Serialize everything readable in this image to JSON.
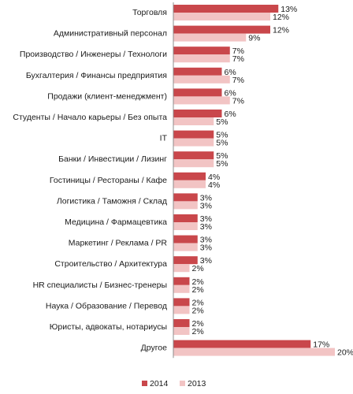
{
  "chart_data": {
    "type": "bar",
    "orientation": "horizontal",
    "categories": [
      "Торговля",
      "Административный персонал",
      "Производство / Инженеры / Технологи",
      "Бухгалтерия / Финансы предприятия",
      "Продажи (клиент-менеджмент)",
      "Студенты / Начало карьеры / Без опыта",
      "IT",
      "Банки / Инвестиции / Лизинг",
      "Гостиницы / Рестораны / Кафе",
      "Логистика / Таможня / Склад",
      "Медицина / Фармацевтика",
      "Маркетинг / Реклама / PR",
      "Строительство / Архитектура",
      "HR специалисты / Бизнес-тренеры",
      "Наука / Образование / Перевод",
      "Юристы, адвокаты, нотариусы",
      "Другое"
    ],
    "series": [
      {
        "name": "2014",
        "color": "#c9474b",
        "values": [
          13,
          12,
          7,
          6,
          6,
          6,
          5,
          5,
          4,
          3,
          3,
          3,
          3,
          2,
          2,
          2,
          17
        ],
        "labels": [
          "13%",
          "12%",
          "7%",
          "6%",
          "6%",
          "6%",
          "5%",
          "5%",
          "4%",
          "3%",
          "3%",
          "3%",
          "3%",
          "2%",
          "2%",
          "2%",
          "17%"
        ]
      },
      {
        "name": "2013",
        "color": "#f2c4c4",
        "values": [
          12,
          9,
          7,
          7,
          7,
          5,
          5,
          5,
          4,
          3,
          3,
          3,
          2,
          2,
          2,
          2,
          20
        ],
        "labels": [
          "12%",
          "9%",
          "7%",
          "7%",
          "7%",
          "5%",
          "5%",
          "5%",
          "4%",
          "3%",
          "3%",
          "3%",
          "2%",
          "2%",
          "2%",
          "2%",
          "20%"
        ]
      }
    ],
    "xlim": [
      0,
      20
    ],
    "grid": false,
    "legend_position": "bottom"
  }
}
